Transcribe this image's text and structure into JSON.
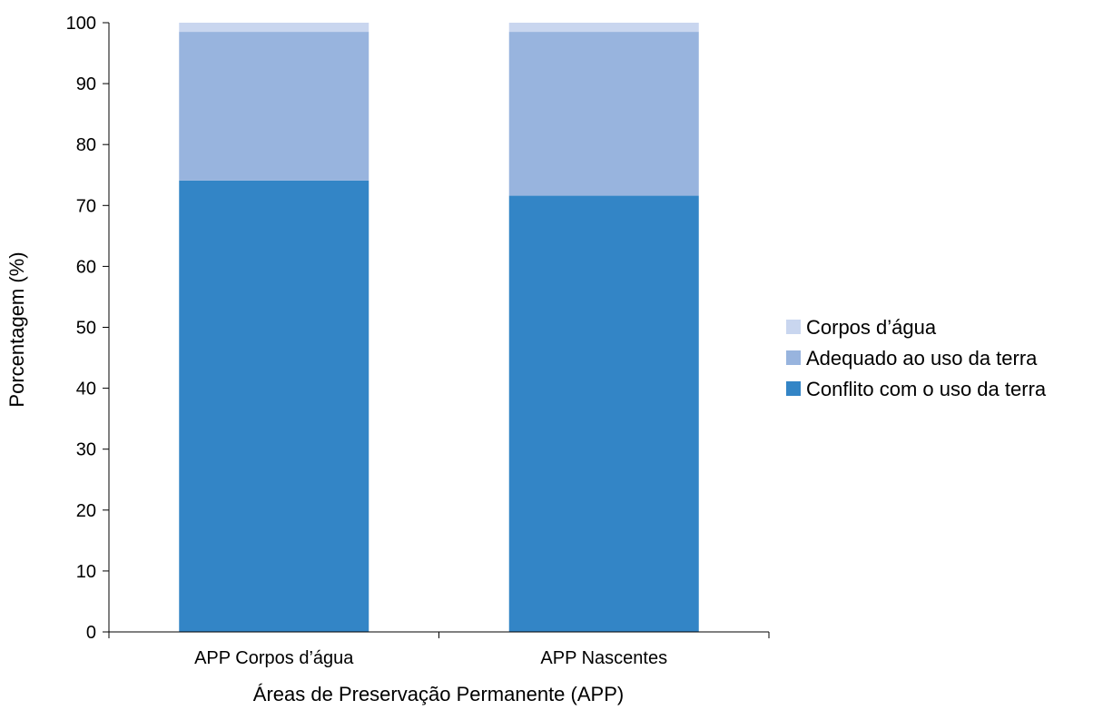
{
  "chart_data": {
    "type": "bar",
    "stacked": true,
    "categories": [
      "APP Corpos d’água",
      "APP Nascentes"
    ],
    "series": [
      {
        "name": "Conflito com o uso da terra",
        "color": "#3385c6",
        "values": [
          74.1,
          71.6
        ]
      },
      {
        "name": "Adequado ao uso da terra",
        "color": "#98b4de",
        "values": [
          24.4,
          26.9
        ]
      },
      {
        "name": "Corpos d’água",
        "color": "#c9d6ef",
        "values": [
          1.5,
          1.5
        ]
      }
    ],
    "xlabel": "Áreas de Preservação Permanente (APP)",
    "ylabel": "Porcentagem (%)",
    "ylim": [
      0,
      100
    ],
    "yticks": [
      0,
      10,
      20,
      30,
      40,
      50,
      60,
      70,
      80,
      90,
      100
    ],
    "grid": false,
    "legend_position": "right",
    "legend_order": [
      "Corpos d’água",
      "Adequado ao uso da terra",
      "Conflito com o uso da terra"
    ]
  }
}
